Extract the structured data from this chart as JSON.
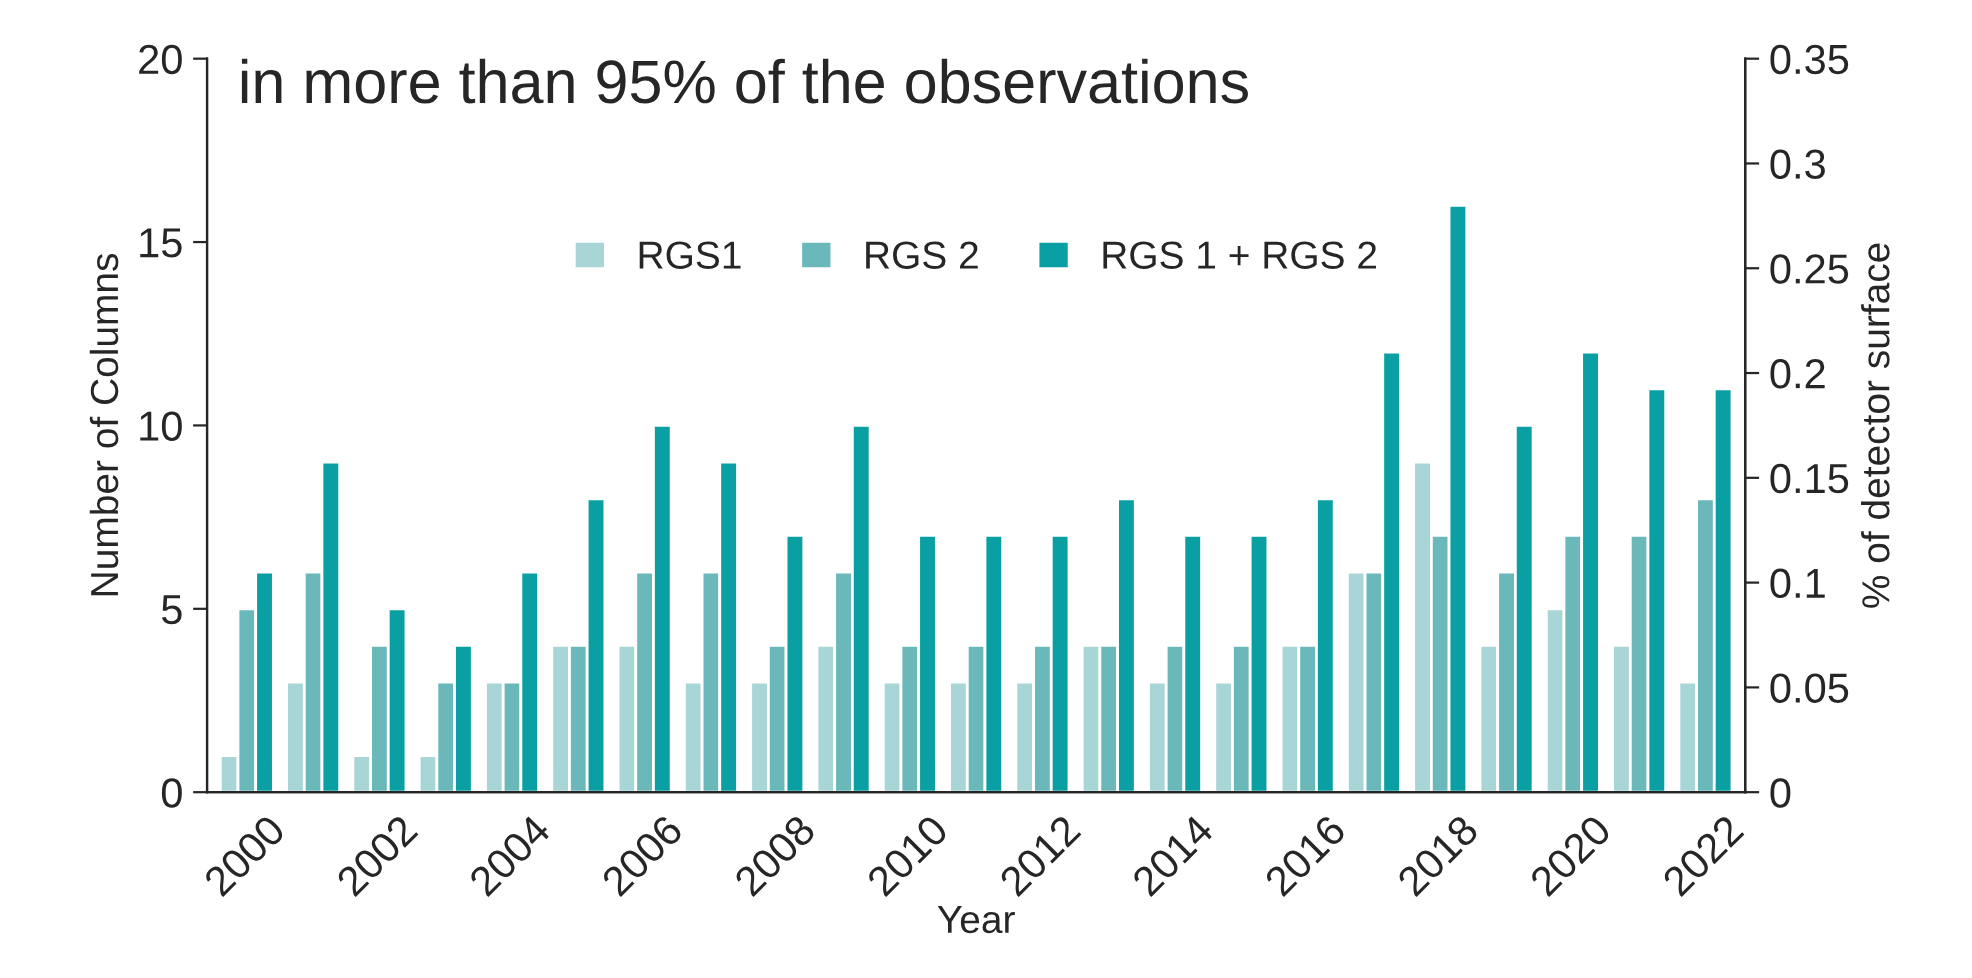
{
  "chart_data": {
    "type": "bar",
    "title": "in more than 95% of the observations",
    "xlabel": "Year",
    "ylabel": "Number of Columns",
    "y2label": "% of detector surface",
    "categories": [
      "2000",
      null,
      "2002",
      null,
      "2004",
      null,
      "2006",
      null,
      "2008",
      null,
      "2010",
      null,
      "2012",
      null,
      "2014",
      null,
      "2016",
      null,
      "2018",
      null,
      "2020",
      null,
      "2022"
    ],
    "series": [
      {
        "name": "RGS1",
        "color": "#a8d5d6",
        "values": [
          1,
          3,
          1,
          1,
          3,
          4,
          4,
          3,
          3,
          4,
          3,
          3,
          3,
          4,
          3,
          3,
          4,
          6,
          9,
          4,
          5,
          4,
          3
        ]
      },
      {
        "name": "RGS 2",
        "color": "#6bb8bb",
        "values": [
          5,
          6,
          4,
          3,
          3,
          4,
          6,
          6,
          4,
          6,
          4,
          4,
          4,
          4,
          4,
          4,
          4,
          6,
          7,
          6,
          7,
          7,
          8
        ]
      },
      {
        "name": "RGS 1 + RGS 2",
        "color": "#0aa0a3",
        "values": [
          6,
          9,
          5,
          4,
          6,
          8,
          10,
          9,
          7,
          10,
          7,
          7,
          7,
          8,
          7,
          7,
          8,
          12,
          16,
          10,
          12,
          11,
          11
        ]
      }
    ],
    "ylim": [
      0,
      20
    ],
    "yticks": [
      0,
      5,
      10,
      15,
      20
    ],
    "y2lim": [
      0,
      0.35
    ],
    "y2ticks": [
      0,
      0.05,
      0.1,
      0.15,
      0.2,
      0.25,
      0.3,
      0.35
    ],
    "grid": false,
    "legend": "top"
  }
}
